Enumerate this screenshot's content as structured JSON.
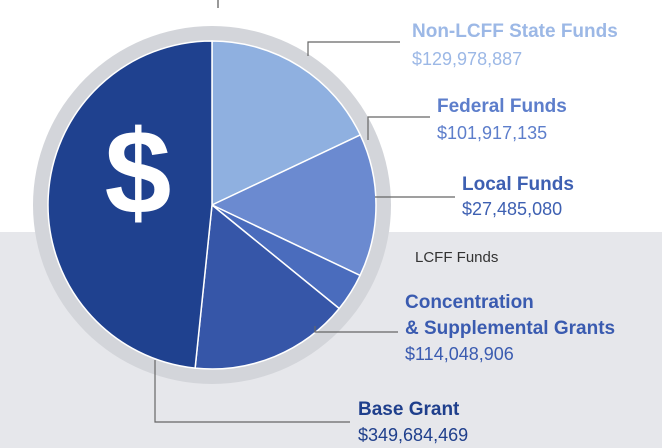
{
  "chart_data": {
    "type": "pie",
    "symbol": "$",
    "annotation": "LCFF Funds",
    "series": [
      {
        "name": "Non-LCFF State Funds",
        "color": "#8fb0e0",
        "text_color": "#9cb8e6",
        "value": 129978887,
        "value_label": "$129,978,887"
      },
      {
        "name": "Federal Funds",
        "color": "#6b8ad0",
        "text_color": "#5d7ecb",
        "value": 101917135,
        "value_label": "$101,917,135"
      },
      {
        "name": "Local Funds",
        "color": "#4a6cbd",
        "text_color": "#3e60b2",
        "value": 27485080,
        "value_label": "$27,485,080"
      },
      {
        "name": "Concentration & Supplemental Grants",
        "color": "#3656a8",
        "text_color": "#3a5bb0",
        "value": 114048906,
        "value_label": "$114,048,906"
      },
      {
        "name": "Base Grant",
        "color": "#1f418f",
        "text_color": "#1f3f8c",
        "value": 349684469,
        "value_label": "$349,684,469"
      }
    ]
  }
}
